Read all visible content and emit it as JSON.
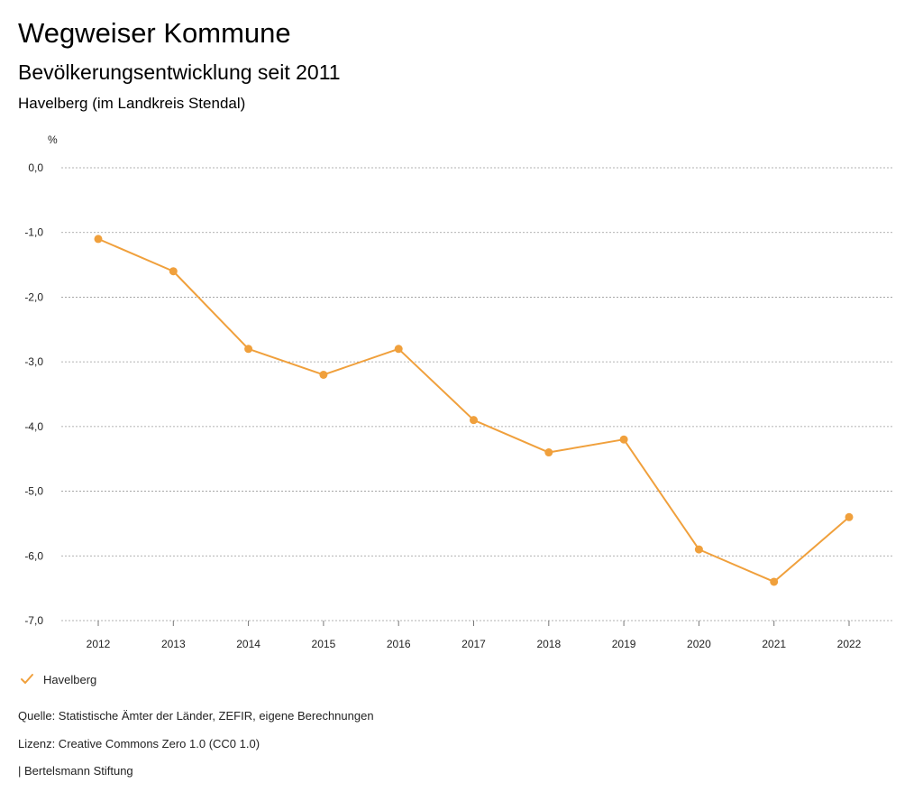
{
  "header": {
    "title": "Wegweiser Kommune",
    "subtitle": "Bevölkerungsentwicklung seit 2011",
    "region": "Havelberg (im Landkreis Stendal)"
  },
  "chart_data": {
    "type": "line",
    "y_unit_label": "%",
    "x": [
      "2012",
      "2013",
      "2014",
      "2015",
      "2016",
      "2017",
      "2018",
      "2019",
      "2020",
      "2021",
      "2022"
    ],
    "series": [
      {
        "name": "Havelberg",
        "color": "#f0a03c",
        "values": [
          -1.1,
          -1.6,
          -2.8,
          -3.2,
          -2.8,
          -3.9,
          -4.4,
          -4.2,
          -5.9,
          -6.4,
          -5.4
        ]
      }
    ],
    "ylim": [
      -7.0,
      0.0
    ],
    "yticks": [
      0.0,
      -1.0,
      -2.0,
      -3.0,
      -4.0,
      -5.0,
      -6.0,
      -7.0
    ],
    "ytick_labels": [
      "0,0",
      "-1,0",
      "-2,0",
      "-3,0",
      "-4,0",
      "-5,0",
      "-6,0",
      "-7,0"
    ],
    "grid": true,
    "legend_position": "bottom-left"
  },
  "footer": {
    "source": "Quelle: Statistische Ämter der Länder, ZEFIR, eigene Berechnungen",
    "license": "Lizenz: Creative Commons Zero 1.0 (CC0 1.0)",
    "publisher": "| Bertelsmann Stiftung"
  }
}
